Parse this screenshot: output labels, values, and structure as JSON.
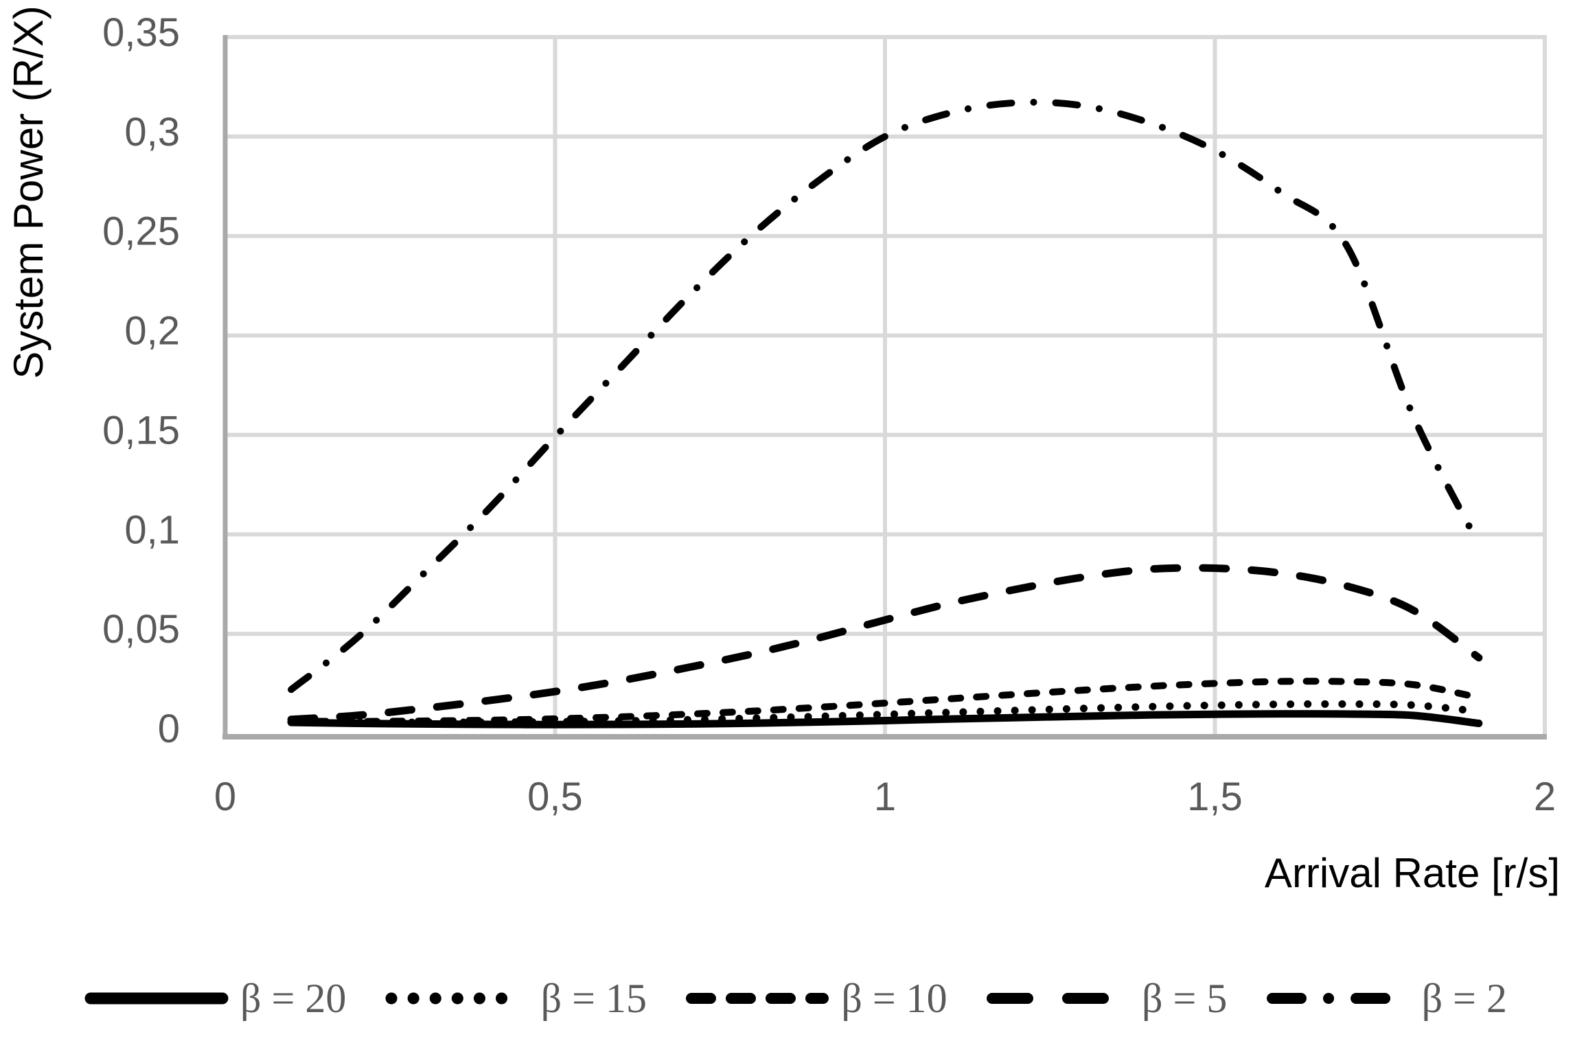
{
  "chart_data": {
    "type": "line",
    "title": "",
    "xlabel": "Arrival Rate [r/s]",
    "ylabel": "System Power (R/X)",
    "xlim": [
      0,
      2
    ],
    "ylim": [
      0,
      0.35
    ],
    "grid": true,
    "legend_position": "bottom",
    "decimal_separator": ",",
    "x_ticks": [
      {
        "v": 0,
        "label": "0"
      },
      {
        "v": 0.5,
        "label": "0,5"
      },
      {
        "v": 1,
        "label": "1"
      },
      {
        "v": 1.5,
        "label": "1,5"
      },
      {
        "v": 2,
        "label": "2"
      }
    ],
    "y_ticks": [
      {
        "v": 0,
        "label": "0"
      },
      {
        "v": 0.05,
        "label": "0,05"
      },
      {
        "v": 0.1,
        "label": "0,1"
      },
      {
        "v": 0.15,
        "label": "0,15"
      },
      {
        "v": 0.2,
        "label": "0,2"
      },
      {
        "v": 0.25,
        "label": "0,25"
      },
      {
        "v": 0.3,
        "label": "0,3"
      },
      {
        "v": 0.35,
        "label": "0,35"
      }
    ],
    "x": [
      0.1,
      0.2,
      0.3,
      0.4,
      0.5,
      0.6,
      0.7,
      0.8,
      0.9,
      1.0,
      1.1,
      1.2,
      1.3,
      1.4,
      1.5,
      1.6,
      1.7,
      1.8,
      1.9
    ],
    "series": [
      {
        "name": "β = 20",
        "style": "solid",
        "values": [
          0.0055,
          0.005,
          0.0047,
          0.0045,
          0.0044,
          0.0045,
          0.0047,
          0.0051,
          0.0057,
          0.0064,
          0.0072,
          0.0079,
          0.0086,
          0.0092,
          0.0096,
          0.0098,
          0.0097,
          0.009,
          0.005
        ]
      },
      {
        "name": "β = 15",
        "style": "dotted",
        "values": [
          0.0058,
          0.0056,
          0.0055,
          0.0056,
          0.0058,
          0.0062,
          0.0068,
          0.0076,
          0.0085,
          0.0095,
          0.0105,
          0.0115,
          0.0125,
          0.0134,
          0.0141,
          0.0146,
          0.0147,
          0.0142,
          0.011
        ]
      },
      {
        "name": "β = 10",
        "style": "short-dash",
        "values": [
          0.0061,
          0.006,
          0.0062,
          0.0066,
          0.0073,
          0.0083,
          0.0096,
          0.0112,
          0.0131,
          0.0152,
          0.0174,
          0.0196,
          0.0217,
          0.0236,
          0.0251,
          0.0261,
          0.026,
          0.0245,
          0.018
        ]
      },
      {
        "name": "β = 5",
        "style": "long-dash",
        "values": [
          0.007,
          0.009,
          0.0125,
          0.0165,
          0.021,
          0.0265,
          0.033,
          0.04,
          0.048,
          0.057,
          0.0655,
          0.0725,
          0.0785,
          0.0825,
          0.083,
          0.0805,
          0.074,
          0.062,
          0.038
        ]
      },
      {
        "name": "β = 2",
        "style": "dash-dot",
        "values": [
          0.022,
          0.048,
          0.08,
          0.113,
          0.149,
          0.184,
          0.219,
          0.251,
          0.278,
          0.3,
          0.312,
          0.317,
          0.3155,
          0.307,
          0.293,
          0.272,
          0.245,
          0.16,
          0.095
        ]
      }
    ],
    "colors": {
      "line": "#000000",
      "grid": "#d9d9d9",
      "axis": "#a9a9a9",
      "tick_label": "#595959",
      "axis_title": "#000000",
      "background": "#ffffff"
    }
  }
}
